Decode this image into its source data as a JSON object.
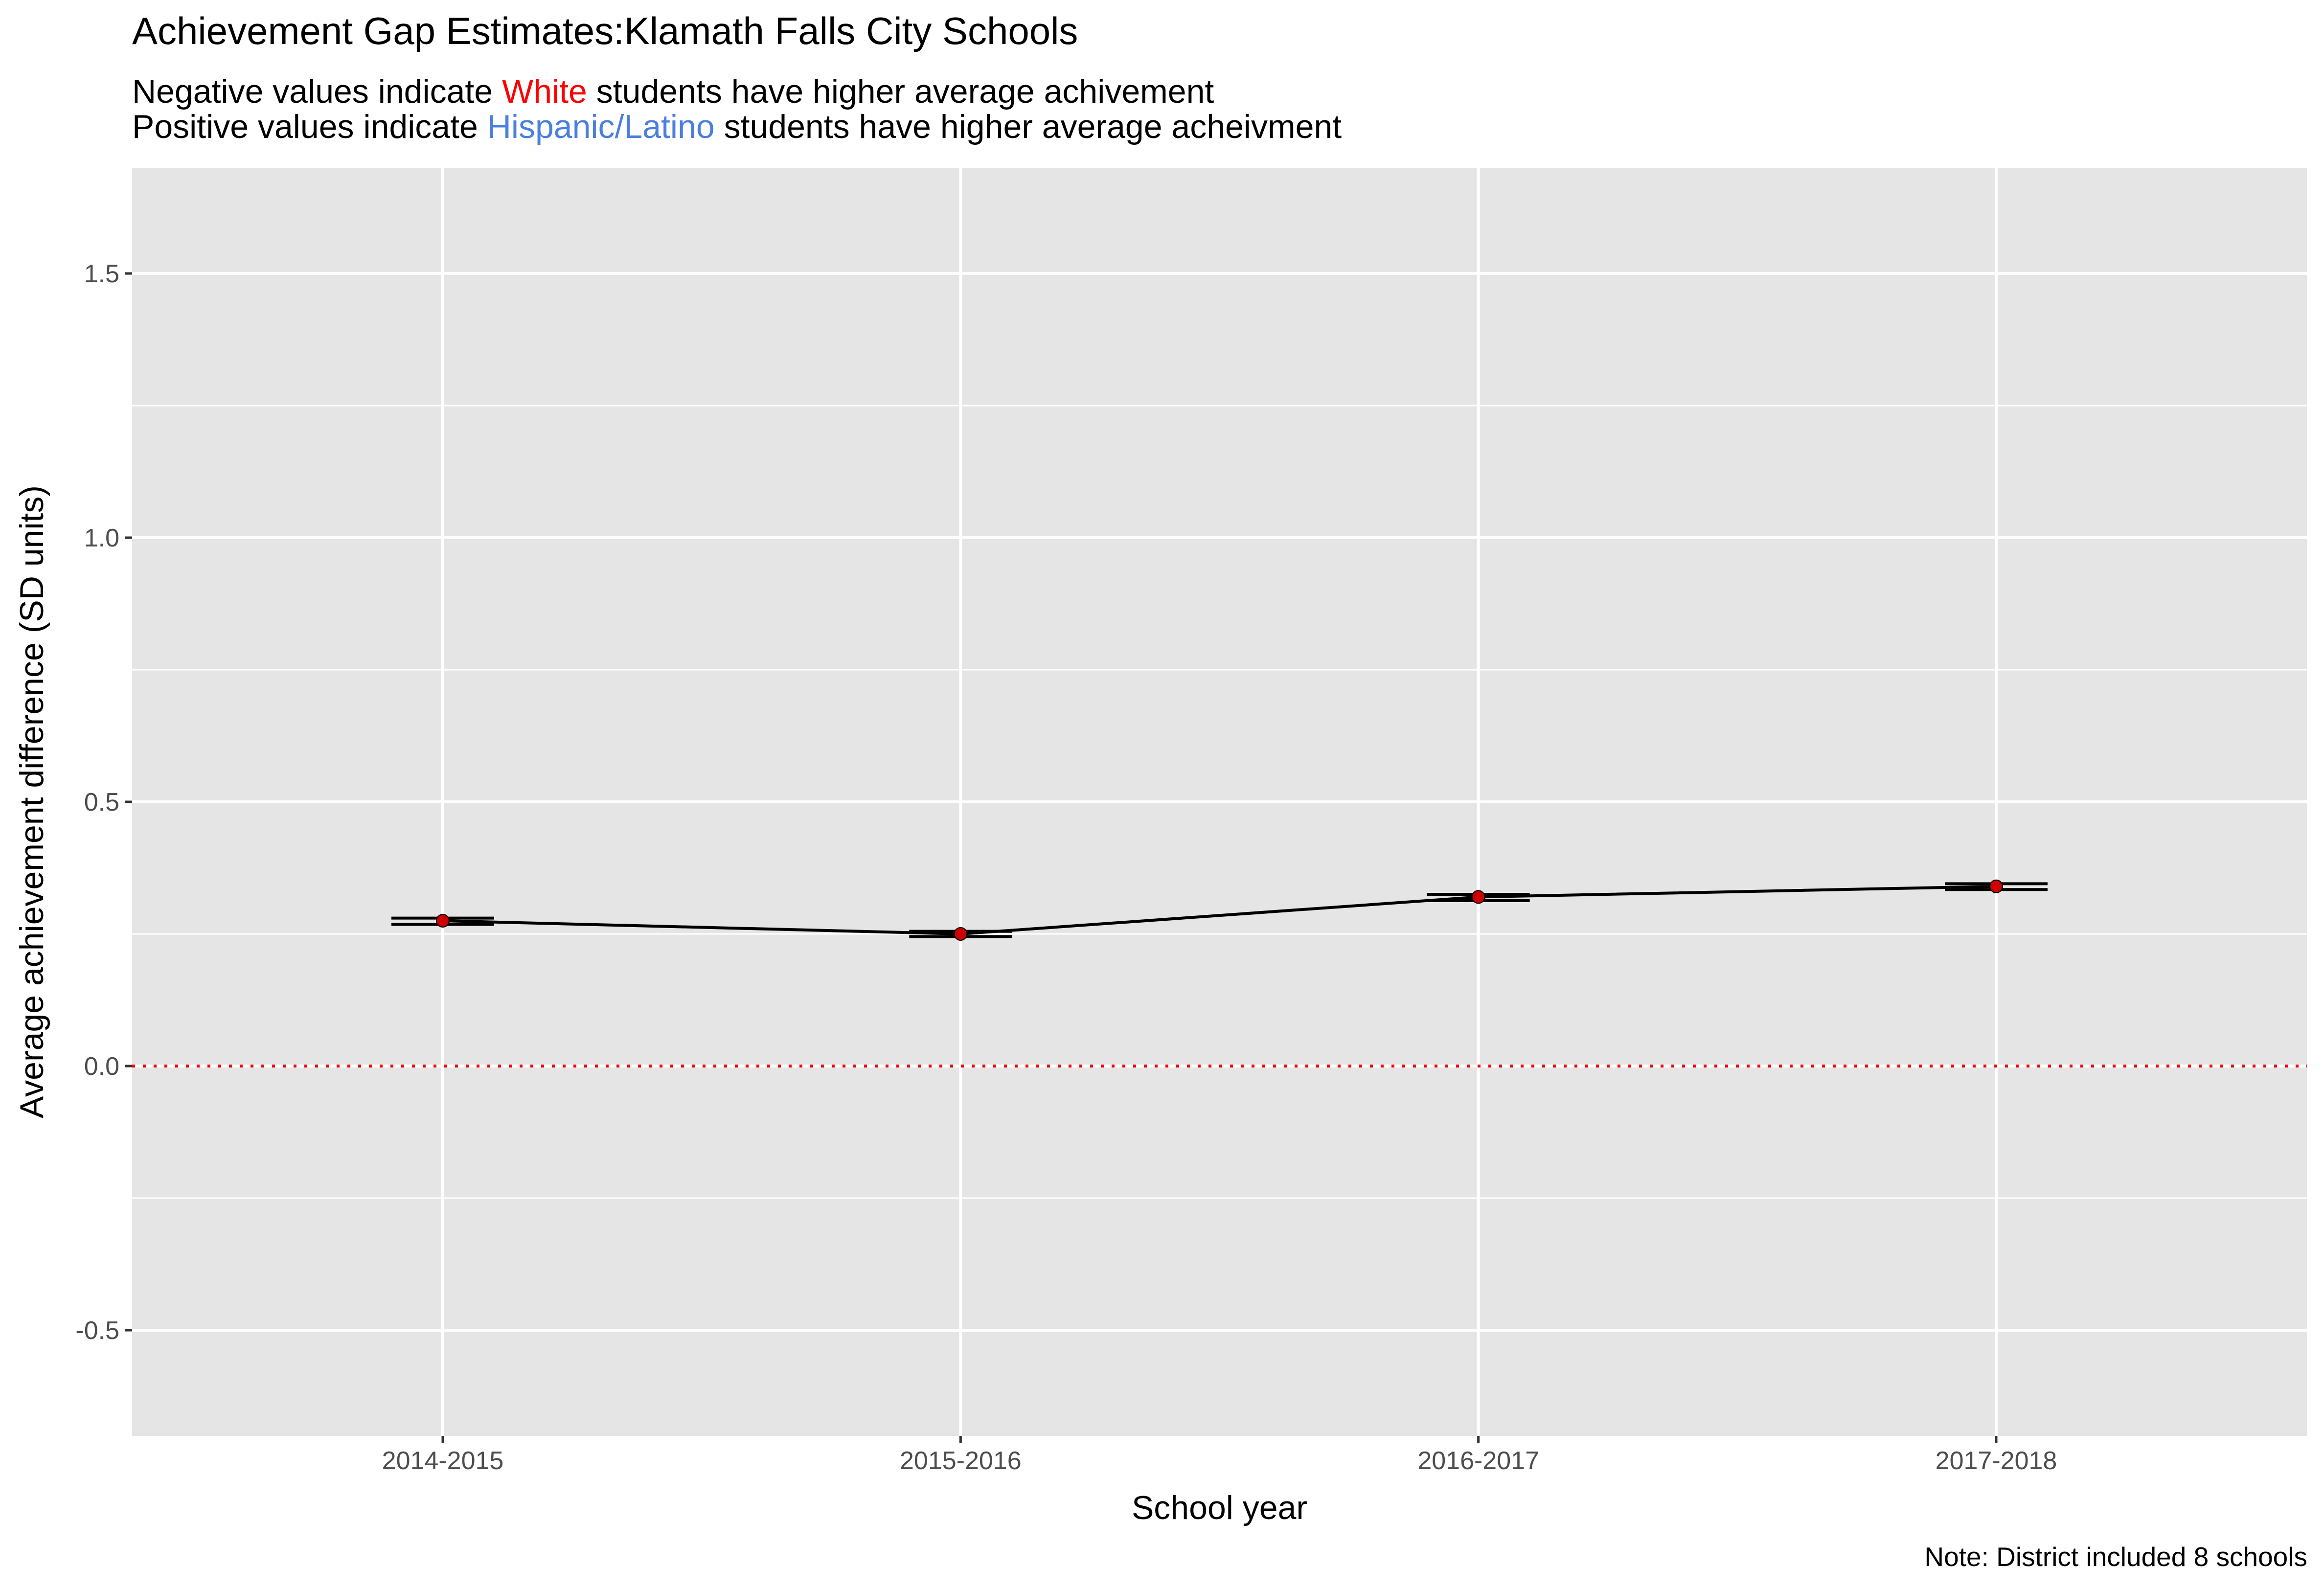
{
  "title": "Achievement Gap Estimates:Klamath Falls City Schools",
  "subtitle": {
    "line1": {
      "before": "Negative values indicate ",
      "highlight": "White",
      "after": " students have higher average achivement"
    },
    "line2": {
      "before": "Positive values indicate ",
      "highlight": "Hispanic/Latino",
      "after": " students have higher average acheivment"
    }
  },
  "note": "Note: District included 8 schools",
  "colors": {
    "panel": "#e5e5e5",
    "grid": "#ffffff",
    "line": "#000000",
    "point": "#cc0000",
    "reference": "#ff0000",
    "white_label": "#ff0000",
    "hispanic_label": "#4a7fe0"
  },
  "chart_data": {
    "type": "line",
    "title": "Achievement Gap Estimates:Klamath Falls City Schools",
    "xlabel": "School year",
    "ylabel": "Average achievement difference (SD units)",
    "categories": [
      "2014-2015",
      "2015-2016",
      "2016-2017",
      "2017-2018"
    ],
    "values": [
      0.275,
      0.25,
      0.32,
      0.34
    ],
    "interval": [
      [
        0.268,
        0.28
      ],
      [
        0.245,
        0.255
      ],
      [
        0.313,
        0.325
      ],
      [
        0.334,
        0.345
      ]
    ],
    "ylim": [
      -0.7,
      1.7
    ],
    "yticks": [
      -0.5,
      0.0,
      0.5,
      1.0,
      1.5
    ],
    "ytick_labels": [
      "-0.5",
      "0.0",
      "0.5",
      "1.0",
      "1.5"
    ],
    "reference_line": 0,
    "grid": true
  }
}
